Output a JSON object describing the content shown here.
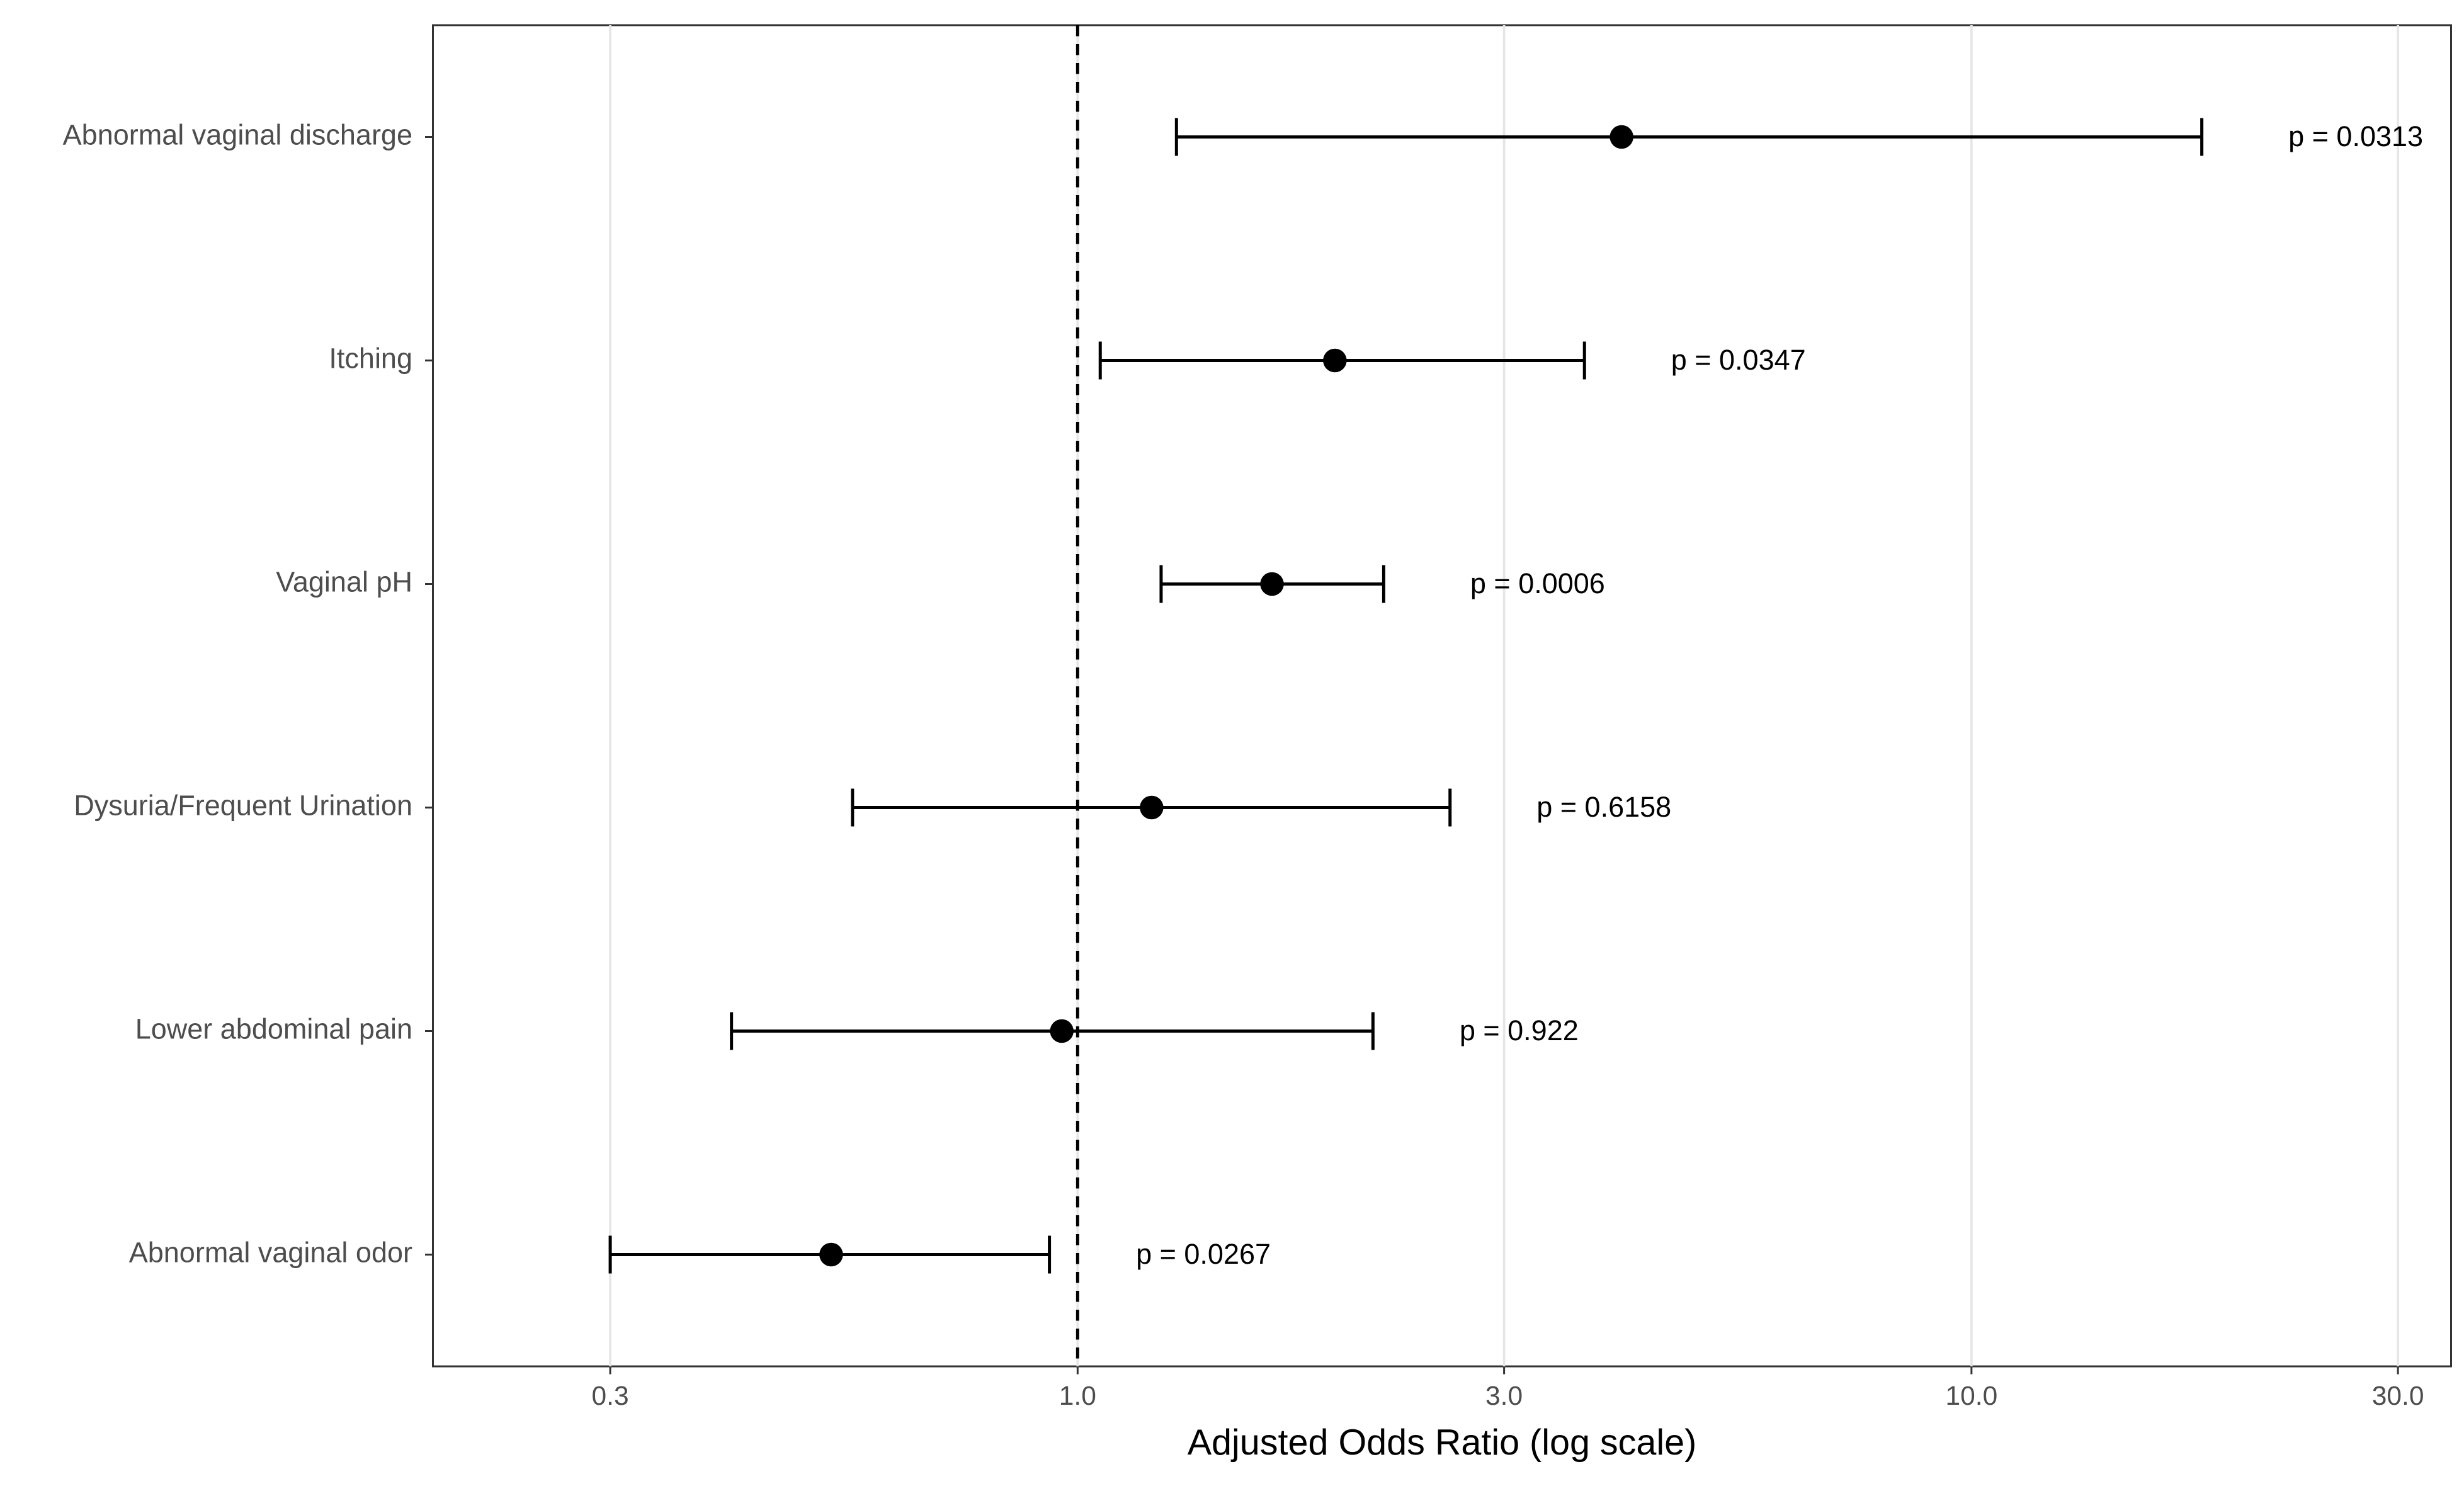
{
  "chart_data": {
    "type": "forest",
    "x_label": "Adjusted Odds Ratio (log scale)",
    "log_x": true,
    "grid": true,
    "color": "#000000",
    "categories": [
      "Abnormal vaginal discharge",
      "Itching",
      "Vaginal pH",
      "Dysuria/Frequent Urination",
      "Lower abdominal pain",
      "Abnormal vaginal odor"
    ],
    "values": [
      4.06,
      1.94,
      1.65,
      1.21,
      0.96,
      0.53
    ],
    "lower": [
      1.29,
      1.06,
      1.24,
      0.56,
      0.41,
      0.3
    ],
    "upper": [
      18.1,
      3.69,
      2.2,
      2.61,
      2.14,
      0.93
    ],
    "annotations": [
      "p = 0.0313",
      "p = 0.0347",
      "p = 0.0006",
      "p = 0.6158",
      "p = 0.922",
      "p = 0.0267"
    ],
    "reference": 1,
    "xlim": [
      0.19,
      34.4
    ],
    "xticks": [
      0.3,
      {
        "value": 1,
        "label": "1.0"
      },
      {
        "value": 3,
        "label": "3.0"
      },
      {
        "value": 10,
        "label": "10.0"
      },
      {
        "value": 30,
        "label": "30.0"
      }
    ]
  }
}
